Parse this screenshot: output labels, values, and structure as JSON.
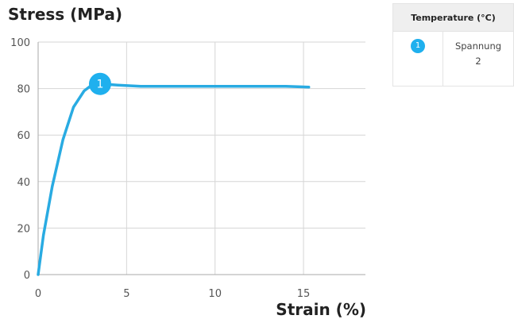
{
  "chart_data": {
    "type": "line",
    "xlabel": "Strain (%)",
    "ylabel": "Stress (MPa)",
    "xlim": [
      0,
      18.5
    ],
    "ylim": [
      0,
      100
    ],
    "xticks": [
      0,
      5,
      10,
      15
    ],
    "yticks": [
      0,
      20,
      40,
      60,
      80,
      100
    ],
    "grid": true,
    "series": [
      {
        "name": "Spannung 2",
        "marker": "1",
        "color": "#29abe2",
        "x": [
          0,
          0.3,
          0.8,
          1.4,
          2.0,
          2.6,
          3.0,
          3.5,
          4.5,
          5.8,
          8,
          10,
          12,
          14,
          15.3
        ],
        "y": [
          0,
          17,
          38,
          58,
          72,
          79,
          81.3,
          82,
          81.5,
          81,
          81,
          81,
          81,
          81,
          80.6
        ]
      }
    ],
    "annotations": [
      {
        "label": "1",
        "x": 3.5,
        "y": 82
      }
    ]
  },
  "legend": {
    "header": "Temperature (°C)",
    "rows": [
      {
        "badge": "1",
        "label": "Spannung 2"
      }
    ]
  }
}
